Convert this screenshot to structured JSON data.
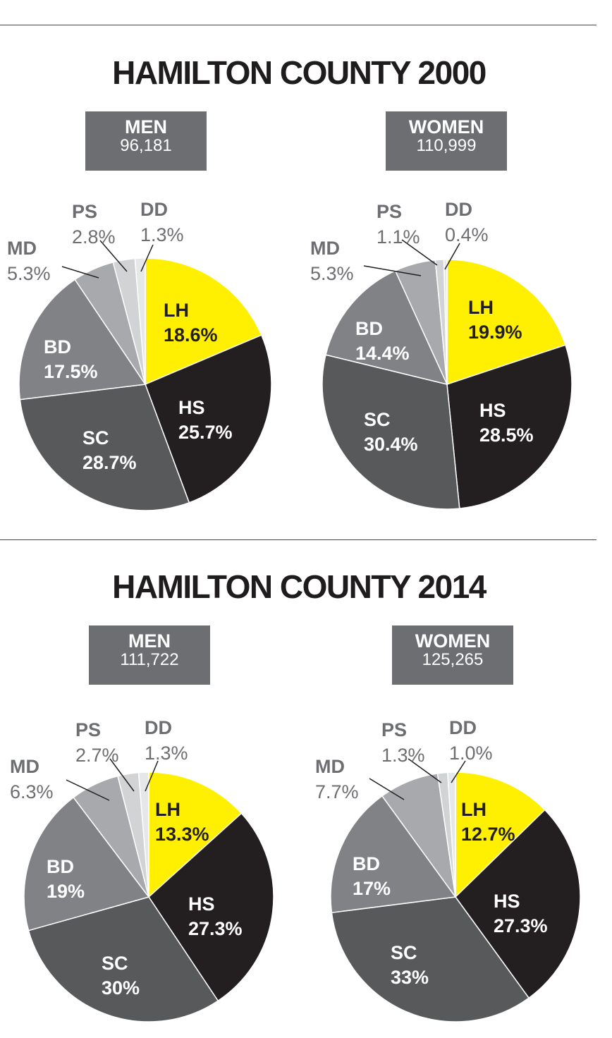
{
  "sections": [
    {
      "title": "HAMILTON COUNTY 2000",
      "charts": [
        {
          "label": "MEN",
          "count": "96,181"
        },
        {
          "label": "WOMEN",
          "count": "110,999"
        }
      ]
    },
    {
      "title": "HAMILTON COUNTY 2014",
      "charts": [
        {
          "label": "MEN",
          "count": "111,722"
        },
        {
          "label": "WOMEN",
          "count": "125,265"
        }
      ]
    }
  ],
  "colors": {
    "LH": "#ffef00",
    "HS": "#231f20",
    "SC": "#58595b",
    "BD": "#808285",
    "MD": "#a7a9ac",
    "PS": "#d1d3d4",
    "DD": "#e6e7e8",
    "outside_label": "#6d6e71",
    "dark_label": "#231f20",
    "light_label": "#ffffff"
  },
  "chart_data": [
    {
      "type": "pie",
      "title": "HAMILTON COUNTY 2000",
      "subtitle": "MEN 96,181",
      "categories": [
        "LH",
        "HS",
        "SC",
        "BD",
        "MD",
        "PS",
        "DD"
      ],
      "values": [
        18.6,
        25.7,
        28.7,
        17.5,
        5.3,
        2.8,
        1.3
      ],
      "labels": [
        "18.6%",
        "25.7%",
        "28.7%",
        "17.5%",
        "5.3%",
        "2.8%",
        "1.3%"
      ]
    },
    {
      "type": "pie",
      "title": "HAMILTON COUNTY 2000",
      "subtitle": "WOMEN 110,999",
      "categories": [
        "LH",
        "HS",
        "SC",
        "BD",
        "MD",
        "PS",
        "DD"
      ],
      "values": [
        19.9,
        28.5,
        30.4,
        14.4,
        5.3,
        1.1,
        0.4
      ],
      "labels": [
        "19.9%",
        "28.5%",
        "30.4%",
        "14.4%",
        "5.3%",
        "1.1%",
        "0.4%"
      ]
    },
    {
      "type": "pie",
      "title": "HAMILTON COUNTY 2014",
      "subtitle": "MEN 111,722",
      "categories": [
        "LH",
        "HS",
        "SC",
        "BD",
        "MD",
        "PS",
        "DD"
      ],
      "values": [
        13.3,
        27.3,
        30,
        19,
        6.3,
        2.7,
        1.3
      ],
      "labels": [
        "13.3%",
        "27.3%",
        "30%",
        "19%",
        "6.3%",
        "2.7%",
        "1.3%"
      ]
    },
    {
      "type": "pie",
      "title": "HAMILTON COUNTY 2014",
      "subtitle": "WOMEN 125,265",
      "categories": [
        "LH",
        "HS",
        "SC",
        "BD",
        "MD",
        "PS",
        "DD"
      ],
      "values": [
        12.7,
        27.3,
        33,
        17,
        7.7,
        1.3,
        1.0
      ],
      "labels": [
        "12.7%",
        "27.3%",
        "33%",
        "17%",
        "7.7%",
        "1.3%",
        "1.0%"
      ]
    }
  ]
}
